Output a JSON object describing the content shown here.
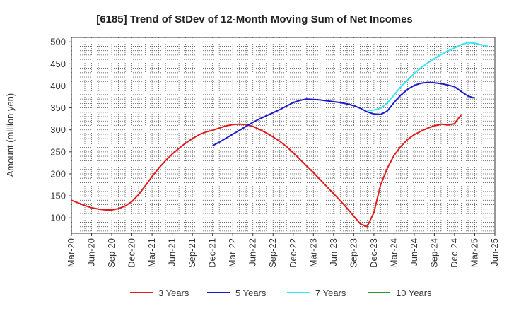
{
  "chart_data": {
    "type": "line",
    "title": "[6185]  Trend of StDev of 12-Month Moving Sum of Net Incomes",
    "xlabel": "",
    "ylabel": "Amount (million yen)",
    "ylim": [
      65,
      510
    ],
    "yticks": [
      100,
      150,
      200,
      250,
      300,
      350,
      400,
      450,
      500
    ],
    "x_tick_labels": [
      "Mar-20",
      "Jun-20",
      "Sep-20",
      "Dec-20",
      "Mar-21",
      "Jun-21",
      "Sep-21",
      "Dec-21",
      "Mar-22",
      "Jun-22",
      "Sep-22",
      "Dec-22",
      "Mar-23",
      "Jun-23",
      "Sep-23",
      "Dec-23",
      "Mar-24",
      "Jun-24",
      "Sep-24",
      "Dec-24",
      "Mar-25",
      "Jun-25"
    ],
    "grid": true,
    "legend_position": "bottom",
    "series": [
      {
        "name": "3 Years",
        "color": "#e31a1c",
        "start": "Mar-20",
        "values": [
          140,
          134,
          128,
          123,
          120,
          118,
          118,
          121,
          127,
          137,
          153,
          173,
          194,
          213,
          230,
          245,
          258,
          270,
          280,
          289,
          295,
          299,
          304,
          309,
          312,
          313,
          312,
          308,
          301,
          293,
          284,
          274,
          262,
          248,
          233,
          218,
          203,
          187,
          171,
          155,
          139,
          122,
          104,
          86,
          80,
          112,
          175,
          213,
          242,
          262,
          278,
          289,
          297,
          304,
          309,
          313,
          311,
          314,
          335
        ]
      },
      {
        "name": "5 Years",
        "color": "#1a1acd",
        "start": "Dec-21",
        "values": [
          264,
          272,
          281,
          290,
          299,
          308,
          317,
          325,
          332,
          339,
          346,
          354,
          362,
          367,
          370,
          369,
          368,
          366,
          364,
          362,
          359,
          355,
          349,
          341,
          336,
          335,
          343,
          362,
          379,
          392,
          401,
          406,
          408,
          407,
          405,
          402,
          398,
          387,
          377,
          372
        ]
      },
      {
        "name": "7 Years",
        "color": "#33e6f2",
        "start": "Nov-23",
        "values": [
          344,
          345,
          349,
          361,
          379,
          398,
          413,
          428,
          441,
          452,
          462,
          471,
          479,
          486,
          494,
          498,
          497,
          493,
          490
        ]
      },
      {
        "name": "10 Years",
        "color": "#2a9a2a",
        "start": "",
        "values": []
      }
    ]
  }
}
